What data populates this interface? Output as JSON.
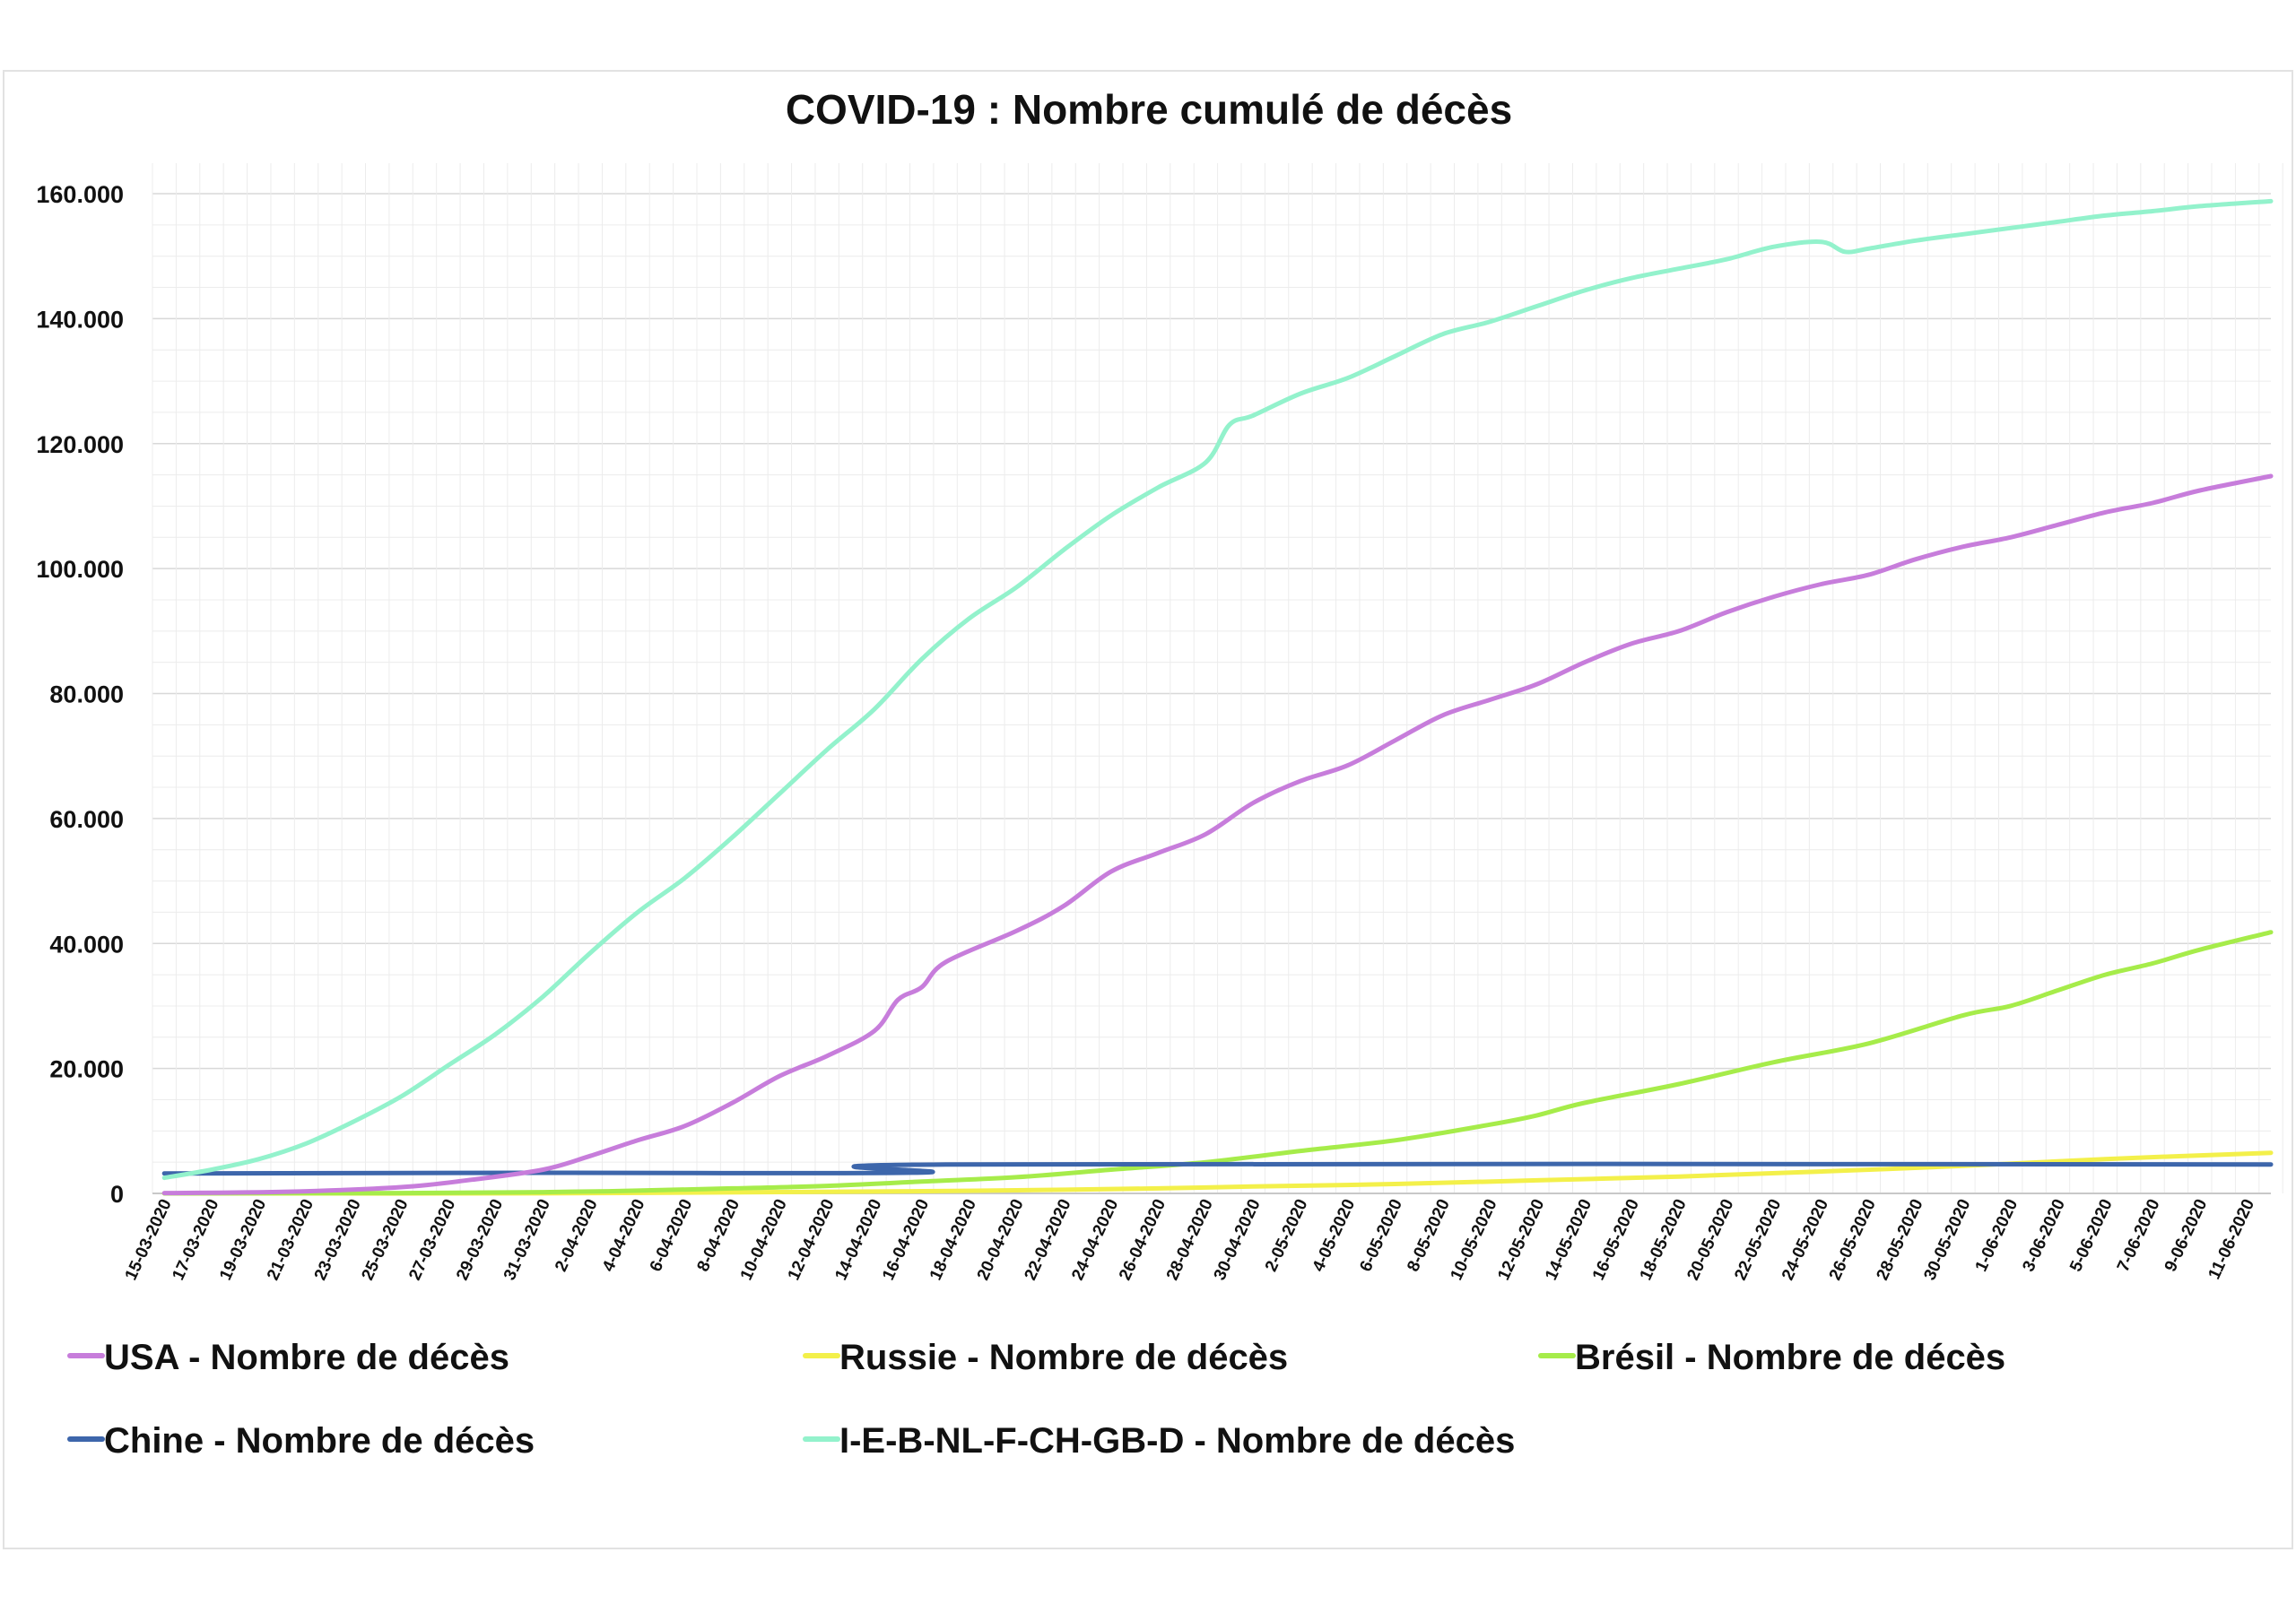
{
  "chart_data": {
    "type": "line",
    "title": "COVID-19 : Nombre cumulé de décès",
    "xlabel": "",
    "ylabel": "",
    "ylim": [
      0,
      160000
    ],
    "y_ticks": [
      "0",
      "20.000",
      "40.000",
      "60.000",
      "80.000",
      "100.000",
      "120.000",
      "140.000",
      "160.000"
    ],
    "x_tick_labels": [
      "15-03-2020",
      "17-03-2020",
      "19-03-2020",
      "21-03-2020",
      "23-03-2020",
      "25-03-2020",
      "27-03-2020",
      "29-03-2020",
      "31-03-2020",
      "2-04-2020",
      "4-04-2020",
      "6-04-2020",
      "8-04-2020",
      "10-04-2020",
      "12-04-2020",
      "14-04-2020",
      "16-04-2020",
      "18-04-2020",
      "20-04-2020",
      "22-04-2020",
      "24-04-2020",
      "26-04-2020",
      "28-04-2020",
      "30-04-2020",
      "2-05-2020",
      "4-05-2020",
      "6-05-2020",
      "8-05-2020",
      "10-05-2020",
      "12-05-2020",
      "14-05-2020",
      "16-05-2020",
      "18-05-2020",
      "20-05-2020",
      "22-05-2020",
      "24-05-2020",
      "26-05-2020",
      "28-05-2020",
      "30-05-2020",
      "1-06-2020",
      "3-06-2020",
      "5-06-2020",
      "7-06-2020",
      "9-06-2020",
      "11-06-2020"
    ],
    "x_start": "15-03-2020",
    "x_end": "12-06-2020",
    "grid": true,
    "legend_position": "bottom",
    "series": [
      {
        "name": "USA - Nombre de décès",
        "color": "#c77ddb",
        "points": [
          [
            "15-03-2020",
            60
          ],
          [
            "20-03-2020",
            250
          ],
          [
            "25-03-2020",
            1000
          ],
          [
            "28-03-2020",
            2200
          ],
          [
            "31-03-2020",
            3800
          ],
          [
            "2-04-2020",
            6000
          ],
          [
            "4-04-2020",
            8500
          ],
          [
            "6-04-2020",
            10800
          ],
          [
            "8-04-2020",
            14500
          ],
          [
            "10-04-2020",
            18800
          ],
          [
            "12-04-2020",
            22000
          ],
          [
            "14-04-2020",
            26000
          ],
          [
            "15-04-2020",
            31000
          ],
          [
            "16-04-2020",
            33000
          ],
          [
            "17-04-2020",
            37000
          ],
          [
            "20-04-2020",
            42000
          ],
          [
            "22-04-2020",
            46000
          ],
          [
            "24-04-2020",
            51500
          ],
          [
            "26-04-2020",
            54500
          ],
          [
            "28-04-2020",
            57500
          ],
          [
            "30-04-2020",
            62500
          ],
          [
            "2-05-2020",
            66000
          ],
          [
            "4-05-2020",
            68500
          ],
          [
            "6-05-2020",
            72500
          ],
          [
            "8-05-2020",
            76500
          ],
          [
            "10-05-2020",
            79000
          ],
          [
            "12-05-2020",
            81500
          ],
          [
            "14-05-2020",
            85000
          ],
          [
            "16-05-2020",
            88000
          ],
          [
            "18-05-2020",
            90000
          ],
          [
            "20-05-2020",
            93000
          ],
          [
            "22-05-2020",
            95500
          ],
          [
            "24-05-2020",
            97500
          ],
          [
            "26-05-2020",
            99000
          ],
          [
            "28-05-2020",
            101500
          ],
          [
            "30-05-2020",
            103500
          ],
          [
            "1-06-2020",
            105000
          ],
          [
            "3-06-2020",
            107000
          ],
          [
            "5-06-2020",
            109000
          ],
          [
            "7-06-2020",
            110500
          ],
          [
            "9-06-2020",
            112500
          ],
          [
            "12-06-2020",
            114800
          ]
        ]
      },
      {
        "name": "Russie - Nombre de décès",
        "color": "#f3f04a",
        "points": [
          [
            "15-03-2020",
            0
          ],
          [
            "31-03-2020",
            20
          ],
          [
            "14-04-2020",
            300
          ],
          [
            "20-04-2020",
            500
          ],
          [
            "26-04-2020",
            800
          ],
          [
            "30-04-2020",
            1100
          ],
          [
            "6-05-2020",
            1500
          ],
          [
            "12-05-2020",
            2100
          ],
          [
            "18-05-2020",
            2700
          ],
          [
            "24-05-2020",
            3500
          ],
          [
            "30-05-2020",
            4400
          ],
          [
            "5-06-2020",
            5500
          ],
          [
            "12-06-2020",
            6500
          ]
        ]
      },
      {
        "name": "Brésil - Nombre de décès",
        "color": "#a6ec4a",
        "points": [
          [
            "15-03-2020",
            0
          ],
          [
            "25-03-2020",
            60
          ],
          [
            "31-03-2020",
            200
          ],
          [
            "4-04-2020",
            450
          ],
          [
            "8-04-2020",
            800
          ],
          [
            "12-04-2020",
            1200
          ],
          [
            "16-04-2020",
            1900
          ],
          [
            "20-04-2020",
            2600
          ],
          [
            "24-04-2020",
            3800
          ],
          [
            "28-04-2020",
            5000
          ],
          [
            "2-05-2020",
            6800
          ],
          [
            "6-05-2020",
            8500
          ],
          [
            "10-05-2020",
            11000
          ],
          [
            "12-05-2020",
            12500
          ],
          [
            "14-05-2020",
            14500
          ],
          [
            "18-05-2020",
            17500
          ],
          [
            "22-05-2020",
            21000
          ],
          [
            "26-05-2020",
            24000
          ],
          [
            "30-05-2020",
            28500
          ],
          [
            "1-06-2020",
            30000
          ],
          [
            "3-06-2020",
            32500
          ],
          [
            "5-06-2020",
            35000
          ],
          [
            "7-06-2020",
            36800
          ],
          [
            "9-06-2020",
            39000
          ],
          [
            "12-06-2020",
            41800
          ]
        ]
      },
      {
        "name": "Chine - Nombre de décès",
        "color": "#3d66ab",
        "points": [
          [
            "15-03-2020",
            3200
          ],
          [
            "31-03-2020",
            3300
          ],
          [
            "16-04-2020",
            3340
          ],
          [
            "17-04-2020",
            4630
          ],
          [
            "12-06-2020",
            4634
          ]
        ]
      },
      {
        "name": "I-E-B-NL-F-CH-GB-D - Nombre de décès",
        "color": "#93f2cc",
        "points": [
          [
            "15-03-2020",
            2500
          ],
          [
            "17-03-2020",
            3800
          ],
          [
            "19-03-2020",
            5500
          ],
          [
            "21-03-2020",
            8000
          ],
          [
            "23-03-2020",
            11500
          ],
          [
            "25-03-2020",
            15500
          ],
          [
            "27-03-2020",
            20500
          ],
          [
            "29-03-2020",
            25500
          ],
          [
            "31-03-2020",
            31500
          ],
          [
            "2-04-2020",
            38500
          ],
          [
            "4-04-2020",
            45000
          ],
          [
            "6-04-2020",
            50500
          ],
          [
            "8-04-2020",
            57000
          ],
          [
            "10-04-2020",
            64000
          ],
          [
            "12-04-2020",
            71000
          ],
          [
            "14-04-2020",
            77500
          ],
          [
            "16-04-2020",
            85500
          ],
          [
            "18-04-2020",
            92000
          ],
          [
            "20-04-2020",
            97000
          ],
          [
            "22-04-2020",
            103000
          ],
          [
            "24-04-2020",
            108500
          ],
          [
            "26-04-2020",
            113000
          ],
          [
            "28-04-2020",
            117000
          ],
          [
            "29-04-2020",
            123000
          ],
          [
            "30-04-2020",
            124500
          ],
          [
            "2-05-2020",
            128000
          ],
          [
            "4-05-2020",
            130500
          ],
          [
            "6-05-2020",
            134000
          ],
          [
            "8-05-2020",
            137500
          ],
          [
            "10-05-2020",
            139500
          ],
          [
            "12-05-2020",
            142000
          ],
          [
            "14-05-2020",
            144500
          ],
          [
            "16-05-2020",
            146500
          ],
          [
            "18-05-2020",
            148000
          ],
          [
            "20-05-2020",
            149500
          ],
          [
            "22-05-2020",
            151500
          ],
          [
            "24-05-2020",
            152300
          ],
          [
            "25-05-2020",
            150700
          ],
          [
            "26-05-2020",
            151200
          ],
          [
            "28-05-2020",
            152500
          ],
          [
            "30-05-2020",
            153500
          ],
          [
            "1-06-2020",
            154500
          ],
          [
            "3-06-2020",
            155500
          ],
          [
            "5-06-2020",
            156500
          ],
          [
            "7-06-2020",
            157200
          ],
          [
            "9-06-2020",
            158000
          ],
          [
            "12-06-2020",
            158800
          ]
        ]
      }
    ]
  }
}
